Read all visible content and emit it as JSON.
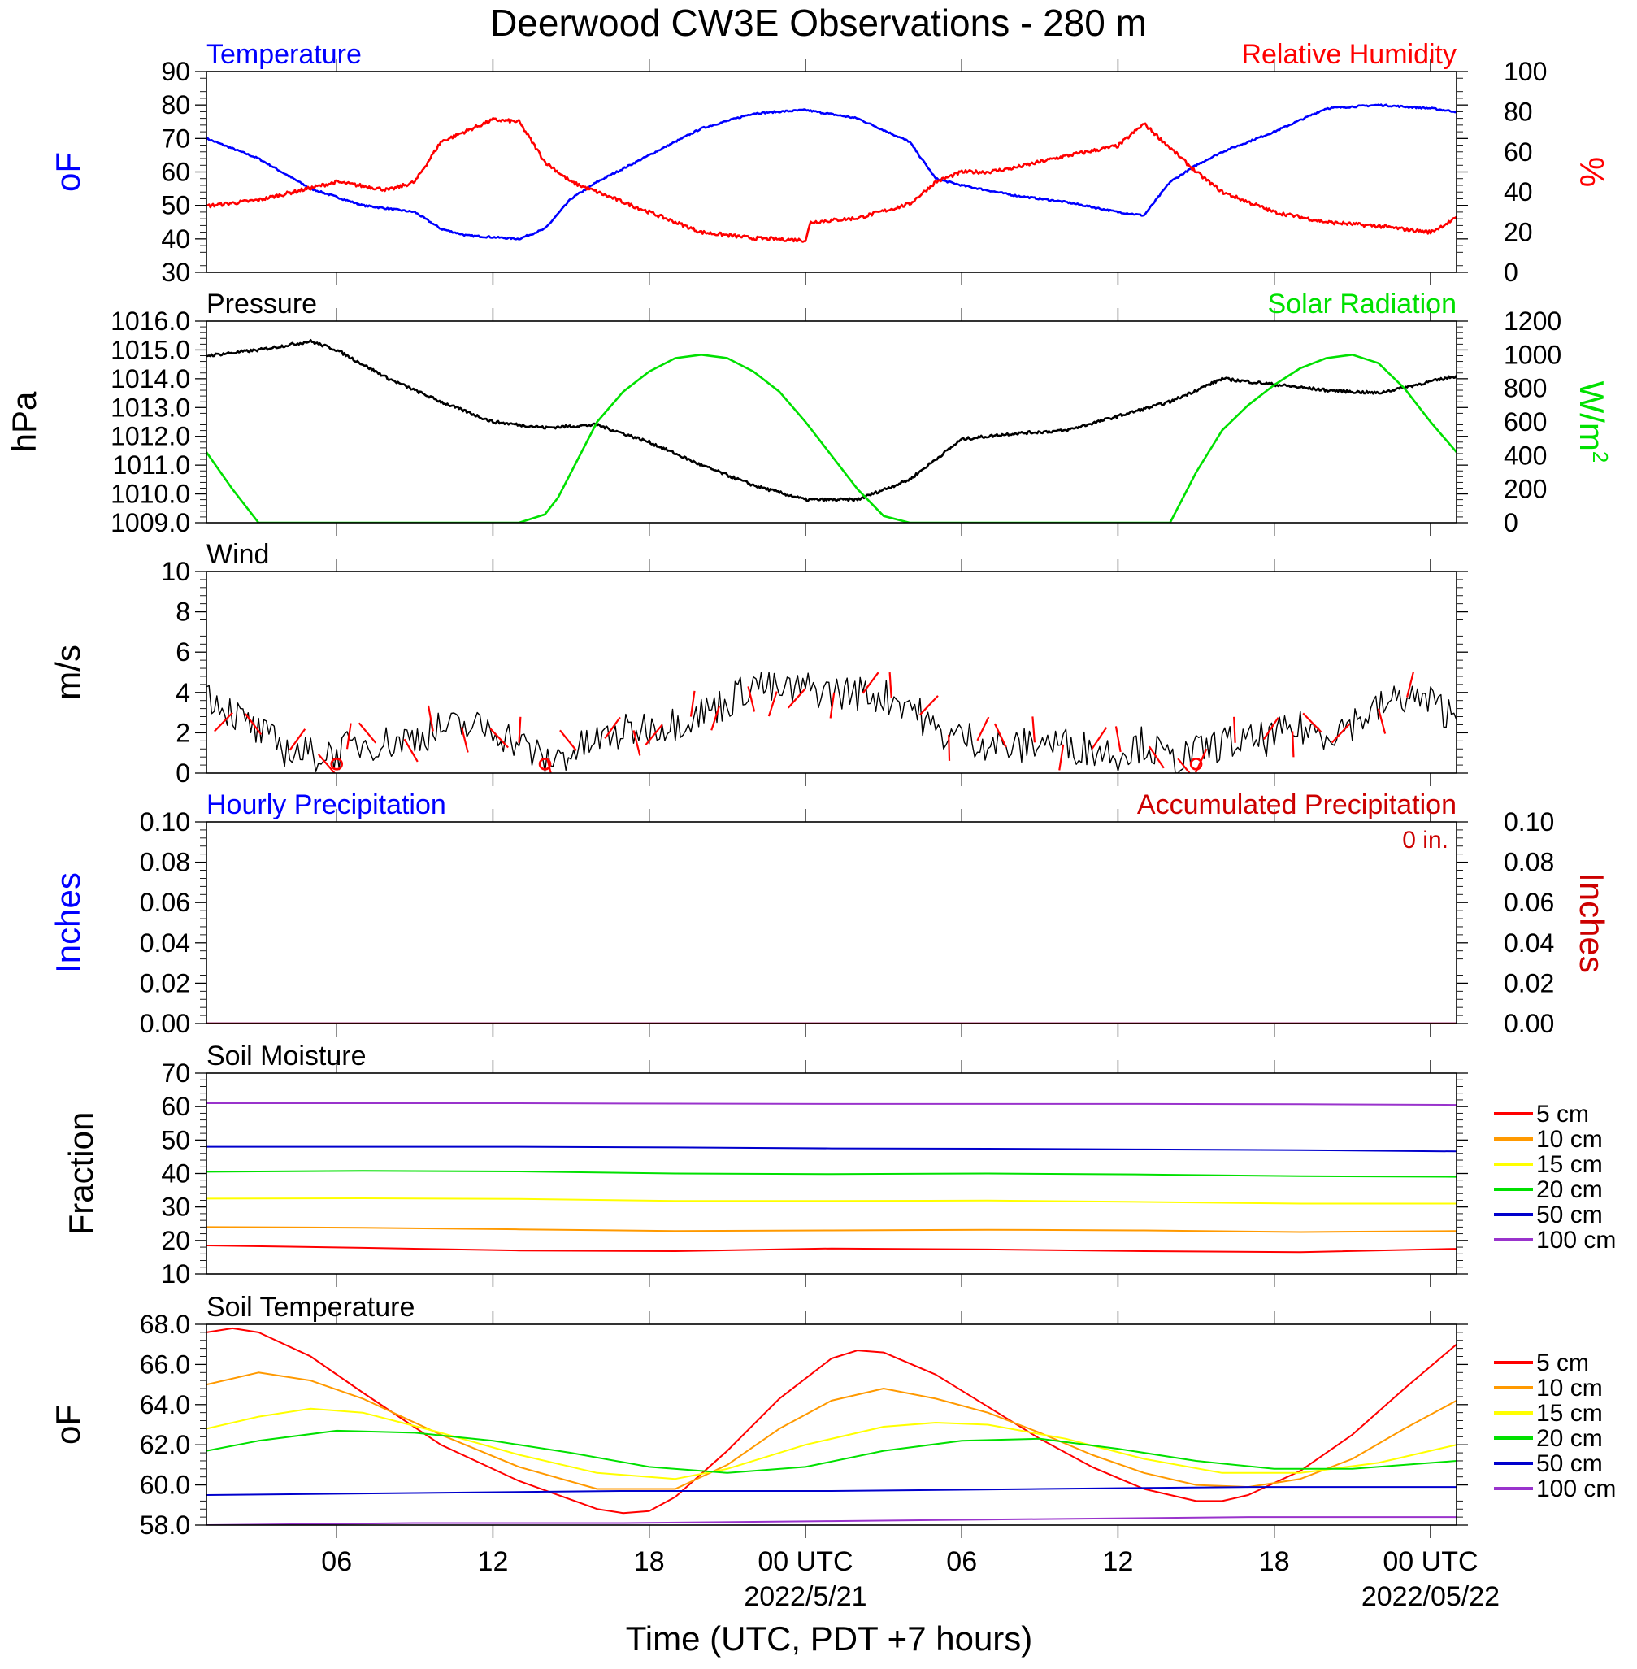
{
  "figure": {
    "title": "Deerwood CW3E Observations - 280 m",
    "xlabel": "Time (UTC, PDT +7 hours)",
    "x_tick_labels": [
      "06",
      "12",
      "18",
      "00 UTC",
      "06",
      "12",
      "18",
      "00 UTC"
    ],
    "x_tick_hours": [
      6,
      12,
      18,
      24,
      30,
      36,
      42,
      48
    ],
    "x_date_labels": [
      {
        "hour": 24,
        "label": "2022/5/21"
      },
      {
        "hour": 48,
        "label": "2022/05/22"
      }
    ],
    "x_range_hours": [
      1,
      49
    ]
  },
  "colors": {
    "temperature": "#0000ff",
    "humidity": "#ff0000",
    "pressure": "#000000",
    "solar": "#00e000",
    "wind": "#000000",
    "wind_barb": "#ff0000",
    "hourly_precip": "#0000ff",
    "accum_precip": "#cc0000",
    "soil_5": "#ff0000",
    "soil_10": "#ff9900",
    "soil_15": "#ffff00",
    "soil_20": "#00e000",
    "soil_50": "#0000cc",
    "soil_100": "#9933cc"
  },
  "chart_data": [
    {
      "type": "line",
      "left_title": "Temperature",
      "right_title": "Relative Humidity",
      "ylabel": "oF",
      "ylabel_right": "%",
      "ylim": [
        30,
        90
      ],
      "y_ticks": [
        "30",
        "40",
        "50",
        "60",
        "70",
        "80",
        "90"
      ],
      "ylim_right": [
        0,
        100
      ],
      "y_ticks_right": [
        "0",
        "20",
        "40",
        "60",
        "80",
        "100"
      ],
      "series": [
        {
          "name": "Temperature",
          "axis": "left",
          "hours": [
            1,
            3,
            5,
            7,
            9,
            10,
            11,
            12,
            13,
            14,
            15,
            16,
            18,
            20,
            22,
            24,
            26,
            28,
            29,
            30,
            32,
            34,
            36,
            37,
            38,
            39,
            40,
            42,
            44,
            46,
            48,
            49
          ],
          "values": [
            70,
            64,
            55,
            50,
            48,
            43,
            41,
            40.5,
            40,
            43,
            52,
            57,
            65,
            73,
            77.5,
            78.5,
            76,
            69,
            58,
            56,
            53,
            51,
            48,
            47,
            57,
            62,
            66,
            72,
            79,
            80,
            79,
            78
          ]
        },
        {
          "name": "Relative Humidity",
          "axis": "right",
          "hours": [
            1,
            3,
            5,
            6,
            7,
            8,
            9,
            10,
            12,
            13,
            14,
            15,
            16,
            18,
            20,
            22,
            24,
            24.2,
            26,
            28,
            29,
            30,
            31,
            32,
            34,
            36,
            37,
            38,
            39,
            40,
            42,
            44,
            46,
            48,
            49
          ],
          "values": [
            33,
            36,
            42,
            45,
            43,
            41,
            45,
            65,
            76,
            75,
            55,
            45,
            40,
            30,
            20,
            17,
            16,
            25,
            27,
            34,
            45,
            50,
            50,
            52,
            58,
            63,
            74,
            62,
            50,
            40,
            30,
            25,
            23,
            20,
            27
          ]
        }
      ]
    },
    {
      "type": "line",
      "left_title": "Pressure",
      "right_title": "Solar Radiation",
      "ylabel": "hPa",
      "ylabel_right": "W/m",
      "ylabel_right_superscript": "2",
      "ylim": [
        1009.0,
        1016.0
      ],
      "y_ticks": [
        "1009.0",
        "1010.0",
        "1011.0",
        "1012.0",
        "1013.0",
        "1014.0",
        "1015.0",
        "1016.0"
      ],
      "ylim_right": [
        0,
        1200
      ],
      "y_ticks_right": [
        "0",
        "200",
        "400",
        "600",
        "800",
        "1000",
        "1200"
      ],
      "series": [
        {
          "name": "Pressure",
          "axis": "left",
          "hours": [
            1,
            3,
            5,
            6,
            8,
            10,
            12,
            14,
            16,
            18,
            20,
            22,
            24,
            26,
            28,
            30,
            32,
            34,
            36,
            38,
            40,
            42,
            44,
            46,
            48,
            49
          ],
          "values": [
            1014.8,
            1015.0,
            1015.3,
            1015.0,
            1014.0,
            1013.2,
            1012.5,
            1012.3,
            1012.4,
            1011.8,
            1011.0,
            1010.3,
            1009.8,
            1009.8,
            1010.5,
            1011.9,
            1012.1,
            1012.2,
            1012.7,
            1013.2,
            1014.0,
            1013.8,
            1013.6,
            1013.5,
            1013.9,
            1014.1
          ]
        },
        {
          "name": "Solar Radiation",
          "axis": "right",
          "hours": [
            1,
            2,
            3,
            13,
            14,
            14.5,
            15,
            16,
            17,
            18,
            19,
            20,
            21,
            22,
            23,
            24,
            25,
            26,
            27,
            28,
            38,
            38.5,
            39,
            40,
            41,
            42,
            43,
            44,
            45,
            46,
            47,
            48,
            49
          ],
          "values": [
            420,
            200,
            0,
            0,
            50,
            150,
            300,
            600,
            780,
            900,
            980,
            1000,
            980,
            900,
            780,
            600,
            400,
            200,
            40,
            0,
            0,
            150,
            300,
            550,
            700,
            820,
            920,
            980,
            1000,
            950,
            800,
            600,
            420
          ]
        }
      ]
    },
    {
      "type": "line",
      "left_title": "Wind",
      "ylabel": "m/s",
      "ylim": [
        0,
        10
      ],
      "y_ticks": [
        "0",
        "2",
        "4",
        "6",
        "8",
        "10"
      ],
      "series": [
        {
          "name": "Wind",
          "hours": [
            1,
            2,
            3,
            4,
            5,
            6,
            7,
            8,
            9,
            10,
            11,
            12,
            13,
            14,
            15,
            16,
            17,
            18,
            19,
            20,
            21,
            22,
            23,
            24,
            25,
            26,
            27,
            28,
            29,
            30,
            31,
            32,
            33,
            34,
            35,
            36,
            37,
            38,
            39,
            40,
            41,
            42,
            43,
            44,
            45,
            46,
            47,
            48,
            49
          ],
          "values": [
            4.0,
            3.0,
            2.0,
            1.2,
            0.9,
            1.0,
            1.5,
            1.5,
            1.8,
            2.2,
            2.3,
            2.2,
            1.5,
            0.6,
            1.0,
            1.6,
            2.0,
            2.3,
            2.5,
            3.0,
            3.5,
            4.5,
            4.0,
            4.2,
            4.0,
            4.0,
            3.8,
            3.5,
            2.0,
            1.8,
            1.5,
            1.2,
            1.6,
            1.4,
            1.2,
            1.0,
            1.5,
            0.6,
            1.0,
            1.5,
            1.5,
            1.8,
            2.2,
            2.0,
            2.5,
            3.2,
            3.8,
            3.5,
            2.8
          ]
        }
      ]
    },
    {
      "type": "line",
      "left_title": "Hourly Precipitation",
      "right_title": "Accumulated Precipitation",
      "annotation": "0 in.",
      "ylabel": "Inches",
      "ylabel_right": "Inches",
      "ylim": [
        0,
        0.1
      ],
      "y_ticks": [
        "0.00",
        "0.02",
        "0.04",
        "0.06",
        "0.08",
        "0.10"
      ],
      "ylim_right": [
        0,
        0.1
      ],
      "y_ticks_right": [
        "0.00",
        "0.02",
        "0.04",
        "0.06",
        "0.08",
        "0.10"
      ],
      "series": [
        {
          "name": "Hourly Precipitation",
          "hours": [
            1,
            49
          ],
          "values": [
            0,
            0
          ]
        },
        {
          "name": "Accumulated Precipitation",
          "hours": [
            1,
            49
          ],
          "values": [
            0,
            0
          ]
        }
      ]
    },
    {
      "type": "line",
      "left_title": "Soil Moisture",
      "ylabel": "Fraction",
      "ylim": [
        10,
        70
      ],
      "y_ticks": [
        "10",
        "20",
        "30",
        "40",
        "50",
        "60",
        "70"
      ],
      "series": [
        {
          "name": "5 cm",
          "hours": [
            1,
            7,
            13,
            19,
            25,
            31,
            37,
            43,
            49
          ],
          "values": [
            18.5,
            17.8,
            17.0,
            16.8,
            17.6,
            17.3,
            16.8,
            16.5,
            17.5
          ]
        },
        {
          "name": "10 cm",
          "hours": [
            1,
            7,
            13,
            19,
            25,
            31,
            37,
            43,
            49
          ],
          "values": [
            24.0,
            23.8,
            23.3,
            22.8,
            23.0,
            23.2,
            23.0,
            22.5,
            22.8
          ]
        },
        {
          "name": "15 cm",
          "hours": [
            1,
            7,
            13,
            19,
            25,
            31,
            37,
            43,
            49
          ],
          "values": [
            32.5,
            32.6,
            32.4,
            31.8,
            31.8,
            31.9,
            31.5,
            31.0,
            31.0
          ]
        },
        {
          "name": "20 cm",
          "hours": [
            1,
            7,
            13,
            19,
            25,
            31,
            37,
            43,
            49
          ],
          "values": [
            40.5,
            40.8,
            40.6,
            40.0,
            39.8,
            40.0,
            39.7,
            39.2,
            39.0
          ]
        },
        {
          "name": "50 cm",
          "hours": [
            1,
            7,
            13,
            19,
            25,
            31,
            37,
            43,
            49
          ],
          "values": [
            48.0,
            48.0,
            48.0,
            47.8,
            47.5,
            47.4,
            47.2,
            47.0,
            46.6
          ]
        },
        {
          "name": "100 cm",
          "hours": [
            1,
            7,
            13,
            19,
            25,
            31,
            37,
            43,
            49
          ],
          "values": [
            61.0,
            61.0,
            61.0,
            60.9,
            60.8,
            60.8,
            60.8,
            60.7,
            60.5
          ]
        }
      ]
    },
    {
      "type": "line",
      "left_title": "Soil Temperature",
      "ylabel": "oF",
      "ylim": [
        58.0,
        68.0
      ],
      "y_ticks": [
        "58.0",
        "60.0",
        "62.0",
        "64.0",
        "66.0",
        "68.0"
      ],
      "series": [
        {
          "name": "5 cm",
          "hours": [
            1,
            2,
            3,
            5,
            7,
            10,
            13,
            16,
            17,
            18,
            19,
            21,
            23,
            25,
            26,
            27,
            29,
            31,
            33,
            35,
            37,
            39,
            40,
            41,
            43,
            45,
            47,
            49
          ],
          "values": [
            67.6,
            67.8,
            67.6,
            66.4,
            64.6,
            62.0,
            60.2,
            58.8,
            58.6,
            58.7,
            59.4,
            61.7,
            64.3,
            66.3,
            66.7,
            66.6,
            65.5,
            63.9,
            62.3,
            60.9,
            59.8,
            59.2,
            59.2,
            59.5,
            60.7,
            62.5,
            64.8,
            67.0
          ]
        },
        {
          "name": "10 cm",
          "hours": [
            1,
            3,
            5,
            7,
            10,
            13,
            16,
            19,
            21,
            23,
            25,
            27,
            29,
            31,
            33,
            35,
            37,
            39,
            41,
            43,
            45,
            47,
            49
          ],
          "values": [
            65.0,
            65.6,
            65.2,
            64.3,
            62.5,
            60.9,
            59.8,
            59.8,
            61.0,
            62.8,
            64.2,
            64.8,
            64.3,
            63.6,
            62.6,
            61.5,
            60.6,
            60.0,
            59.9,
            60.3,
            61.3,
            62.8,
            64.2
          ]
        },
        {
          "name": "15 cm",
          "hours": [
            1,
            3,
            5,
            7,
            10,
            13,
            16,
            19,
            21,
            24,
            27,
            29,
            31,
            34,
            37,
            40,
            43,
            46,
            49
          ],
          "values": [
            62.8,
            63.4,
            63.8,
            63.6,
            62.6,
            61.5,
            60.6,
            60.3,
            60.8,
            62.0,
            62.9,
            63.1,
            63.0,
            62.3,
            61.3,
            60.6,
            60.6,
            61.1,
            62.0
          ]
        },
        {
          "name": "20 cm",
          "hours": [
            1,
            3,
            6,
            9,
            12,
            15,
            18,
            21,
            24,
            27,
            30,
            33,
            36,
            39,
            42,
            45,
            49
          ],
          "values": [
            61.7,
            62.2,
            62.7,
            62.6,
            62.2,
            61.6,
            60.9,
            60.6,
            60.9,
            61.7,
            62.2,
            62.3,
            61.8,
            61.2,
            60.8,
            60.8,
            61.2
          ]
        },
        {
          "name": "50 cm",
          "hours": [
            1,
            9,
            17,
            25,
            33,
            41,
            49
          ],
          "values": [
            59.5,
            59.6,
            59.7,
            59.7,
            59.8,
            59.9,
            59.9
          ]
        },
        {
          "name": "100 cm",
          "hours": [
            1,
            9,
            17,
            25,
            33,
            41,
            49
          ],
          "values": [
            58.0,
            58.1,
            58.1,
            58.2,
            58.3,
            58.4,
            58.4
          ]
        }
      ]
    }
  ]
}
